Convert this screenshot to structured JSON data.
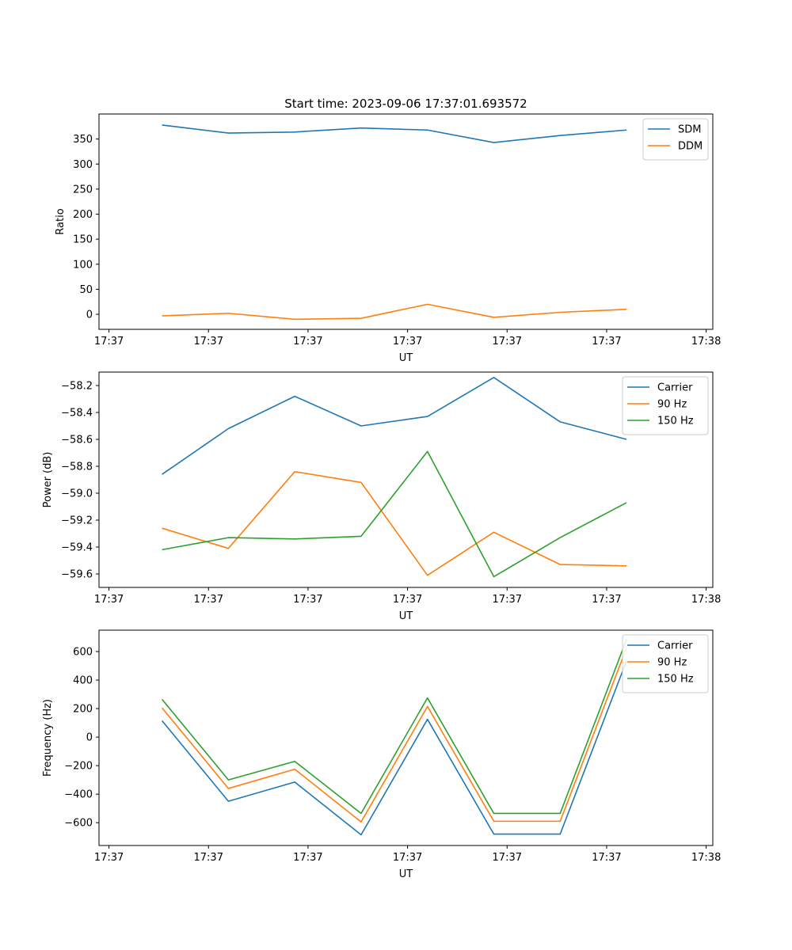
{
  "figure": {
    "title": "Start time: 2023-09-06 17:37:01.693572"
  },
  "chart_data": [
    {
      "type": "line",
      "title": "Start time: 2023-09-06 17:37:01.693572",
      "xlabel": "UT",
      "ylabel": "Ratio",
      "x": [
        1,
        2,
        3,
        4,
        5,
        6,
        7,
        8
      ],
      "xlim": [
        0.05,
        9.3
      ],
      "xticks": [
        {
          "value": 0.2,
          "label": "17:37"
        },
        {
          "value": 1.7,
          "label": "17:37"
        },
        {
          "value": 3.2,
          "label": "17:37"
        },
        {
          "value": 4.7,
          "label": "17:37"
        },
        {
          "value": 6.2,
          "label": "17:37"
        },
        {
          "value": 7.7,
          "label": "17:37"
        },
        {
          "value": 9.2,
          "label": "17:38"
        }
      ],
      "ylim": [
        -30,
        400
      ],
      "yticks": [
        0,
        50,
        100,
        150,
        200,
        250,
        300,
        350
      ],
      "legend": "top-right",
      "series": [
        {
          "name": "SDM",
          "color": "#1f77b4",
          "values": [
            378,
            362,
            364,
            372,
            368,
            343,
            357,
            368
          ]
        },
        {
          "name": "DDM",
          "color": "#ff7f0e",
          "values": [
            -3,
            2,
            -10,
            -8,
            20,
            -6,
            4,
            10
          ]
        }
      ]
    },
    {
      "type": "line",
      "xlabel": "UT",
      "ylabel": "Power (dB)",
      "x": [
        1,
        2,
        3,
        4,
        5,
        6,
        7,
        8
      ],
      "xlim": [
        0.05,
        9.3
      ],
      "xticks": [
        {
          "value": 0.2,
          "label": "17:37"
        },
        {
          "value": 1.7,
          "label": "17:37"
        },
        {
          "value": 3.2,
          "label": "17:37"
        },
        {
          "value": 4.7,
          "label": "17:37"
        },
        {
          "value": 6.2,
          "label": "17:37"
        },
        {
          "value": 7.7,
          "label": "17:37"
        },
        {
          "value": 9.2,
          "label": "17:38"
        }
      ],
      "ylim": [
        -59.7,
        -58.1
      ],
      "yticks": [
        -59.6,
        -59.4,
        -59.2,
        -59.0,
        -58.8,
        -58.6,
        -58.4,
        -58.2
      ],
      "ytick_labels": [
        "−59.6",
        "−59.4",
        "−59.2",
        "−59.0",
        "−58.8",
        "−58.6",
        "−58.4",
        "−58.2"
      ],
      "legend": "top-right",
      "series": [
        {
          "name": "Carrier",
          "color": "#1f77b4",
          "values": [
            -58.86,
            -58.52,
            -58.28,
            -58.5,
            -58.43,
            -58.14,
            -58.47,
            -58.6
          ]
        },
        {
          "name": "90 Hz",
          "color": "#ff7f0e",
          "values": [
            -59.26,
            -59.41,
            -58.84,
            -58.92,
            -59.61,
            -59.29,
            -59.53,
            -59.54
          ]
        },
        {
          "name": "150 Hz",
          "color": "#2ca02c",
          "values": [
            -59.42,
            -59.33,
            -59.34,
            -59.32,
            -58.69,
            -59.62,
            -59.33,
            -59.07
          ]
        }
      ]
    },
    {
      "type": "line",
      "xlabel": "UT",
      "ylabel": "Frequency (Hz)",
      "x": [
        1,
        2,
        3,
        4,
        5,
        6,
        7,
        8
      ],
      "xlim": [
        0.05,
        9.3
      ],
      "xticks": [
        {
          "value": 0.2,
          "label": "17:37"
        },
        {
          "value": 1.7,
          "label": "17:37"
        },
        {
          "value": 3.2,
          "label": "17:37"
        },
        {
          "value": 4.7,
          "label": "17:37"
        },
        {
          "value": 6.2,
          "label": "17:37"
        },
        {
          "value": 7.7,
          "label": "17:37"
        },
        {
          "value": 9.2,
          "label": "17:38"
        }
      ],
      "ylim": [
        -760,
        750
      ],
      "yticks": [
        -600,
        -400,
        -200,
        0,
        200,
        400,
        600
      ],
      "ytick_labels": [
        "−600",
        "−400",
        "−200",
        "0",
        "200",
        "400",
        "600"
      ],
      "legend": "top-right",
      "series": [
        {
          "name": "Carrier",
          "color": "#1f77b4",
          "values": [
            115,
            -450,
            -315,
            -685,
            125,
            -680,
            -680,
            535
          ]
        },
        {
          "name": "90 Hz",
          "color": "#ff7f0e",
          "values": [
            205,
            -360,
            -225,
            -595,
            215,
            -590,
            -590,
            625
          ]
        },
        {
          "name": "150 Hz",
          "color": "#2ca02c",
          "values": [
            265,
            -300,
            -170,
            -535,
            275,
            -535,
            -535,
            685
          ]
        }
      ]
    }
  ]
}
